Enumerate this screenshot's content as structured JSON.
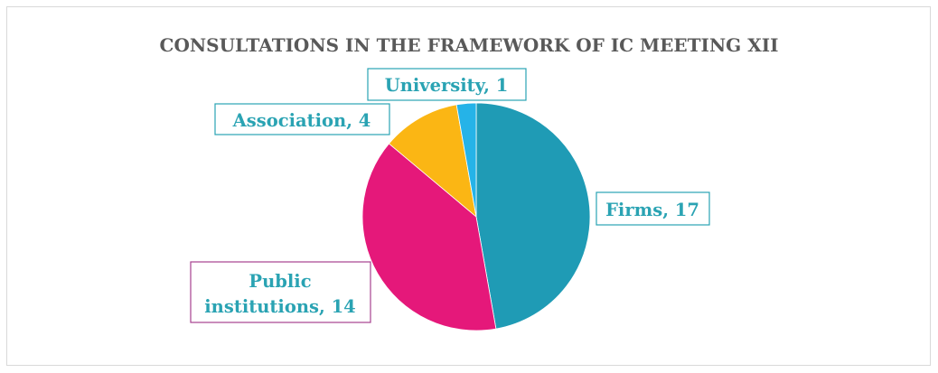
{
  "chart_data": {
    "type": "pie",
    "title": "CONSULTATIONS IN THE FRAMEWORK OF IC MEETING XII",
    "legend": "none",
    "slices": [
      {
        "category": "Firms",
        "value": 17,
        "label": "Firms, 17",
        "color": "#1F9BB5"
      },
      {
        "category": "Public institutions",
        "value": 14,
        "label_lines": [
          "Public",
          "institutions, 14"
        ],
        "color": "#E5187A"
      },
      {
        "category": "Association",
        "value": 4,
        "label": "Association, 4",
        "color": "#FBB614"
      },
      {
        "category": "University",
        "value": 1,
        "label": "University, 1",
        "color": "#25B3E8"
      }
    ],
    "colors": {
      "label_text": "#2AA3B3",
      "label_border": "#2AA3B3",
      "public_label_border": "#A6418F",
      "title_text": "#595959"
    }
  }
}
